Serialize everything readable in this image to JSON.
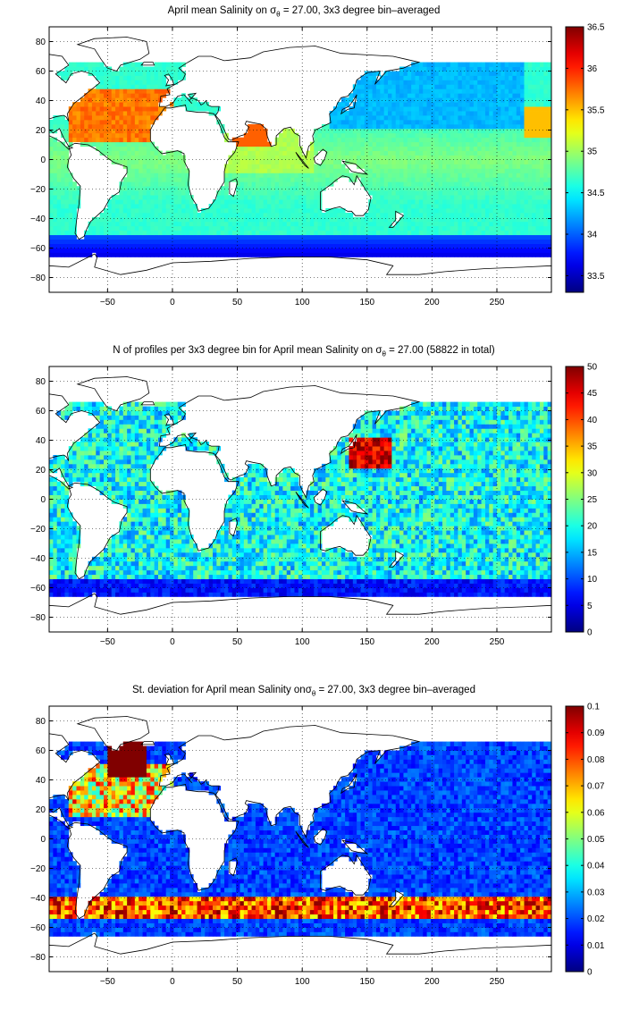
{
  "figure": {
    "panels": [
      {
        "id": "salinity",
        "title_pre": "April mean Salinity on ",
        "sigma_sub": "θ",
        "title_post": " = 27.00, 3x3 degree bin–averaged",
        "colorbar": {
          "min": 33.3,
          "max": 36.5,
          "ticks": [
            "36.5",
            "36",
            "35.5",
            "35",
            "34.5",
            "34",
            "33.5"
          ],
          "tick_values": [
            36.5,
            36,
            35.5,
            35,
            34.5,
            34,
            33.5
          ]
        }
      },
      {
        "id": "count",
        "title_pre": "N of profiles per 3x3 degree bin for April mean Salinity on ",
        "sigma_sub": "θ",
        "title_post": " = 27.00 (58822 in total)",
        "colorbar": {
          "min": 0,
          "max": 50,
          "ticks": [
            "50",
            "45",
            "40",
            "35",
            "30",
            "25",
            "20",
            "15",
            "10",
            "5",
            "0"
          ],
          "tick_values": [
            50,
            45,
            40,
            35,
            30,
            25,
            20,
            15,
            10,
            5,
            0
          ]
        }
      },
      {
        "id": "stdev",
        "title_pre": "St. deviation for April mean Salinity on",
        "sigma_sub": "θ",
        "title_post": " = 27.00, 3x3 degree bin–averaged",
        "colorbar": {
          "min": 0,
          "max": 0.1,
          "ticks": [
            "0.1",
            "0.09",
            "0.08",
            "0.07",
            "0.06",
            "0.05",
            "0.04",
            "0.03",
            "0.02",
            "0.01",
            "0"
          ],
          "tick_values": [
            0.1,
            0.09,
            0.08,
            0.07,
            0.06,
            0.05,
            0.04,
            0.03,
            0.02,
            0.01,
            0
          ]
        }
      }
    ],
    "axes": {
      "x_ticks": [
        "−50",
        "0",
        "50",
        "100",
        "150",
        "200",
        "250"
      ],
      "x_values": [
        -50,
        0,
        50,
        100,
        150,
        200,
        250
      ],
      "y_ticks": [
        "80",
        "60",
        "40",
        "20",
        "0",
        "−20",
        "−40",
        "−60",
        "−80"
      ],
      "y_values": [
        80,
        60,
        40,
        20,
        0,
        -20,
        -40,
        -60,
        -80
      ],
      "xlim": [
        -95,
        292
      ],
      "ylim": [
        -90,
        90
      ],
      "grid": "dotted"
    },
    "colormap": "jet",
    "colors": {
      "axis": "#000000",
      "background": "#ffffff"
    }
  }
}
